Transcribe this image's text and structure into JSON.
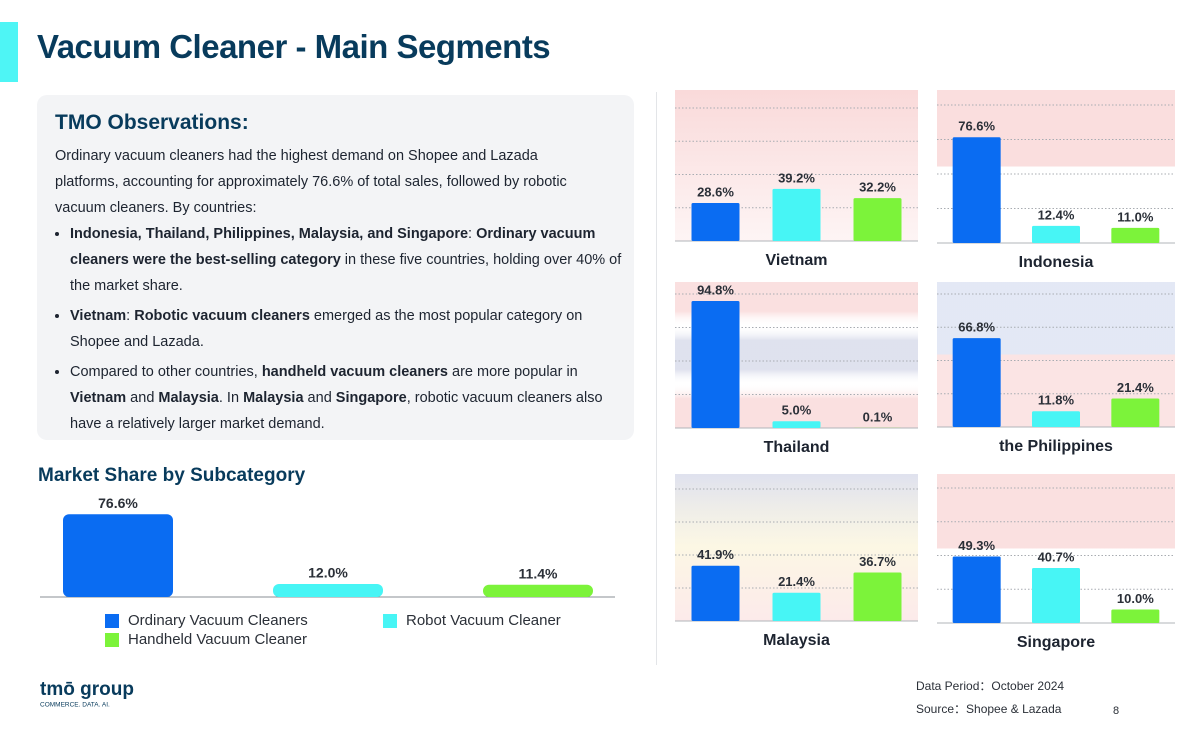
{
  "title": "Vacuum Cleaner - Main Segments",
  "observations": {
    "heading": "TMO Observations:",
    "intro": "Ordinary vacuum cleaners had the highest demand on Shopee and Lazada platforms, accounting for approximately 76.6% of total sales, followed by robotic vacuum cleaners. By countries:",
    "bullets": [
      [
        {
          "text": "Indonesia, Thailand, Philippines, Malaysia, and Singapore",
          "bold": true
        },
        {
          "text": ": ",
          "bold": false
        },
        {
          "text": "Ordinary vacuum cleaners were the best-selling category",
          "bold": true
        },
        {
          "text": " in these five countries, holding over 40% of the market share.",
          "bold": false
        }
      ],
      [
        {
          "text": "Vietnam",
          "bold": true
        },
        {
          "text": ": ",
          "bold": false
        },
        {
          "text": "Robotic vacuum cleaners",
          "bold": true
        },
        {
          "text": " emerged as the most popular category on Shopee and Lazada.",
          "bold": false
        }
      ],
      [
        {
          "text": "Compared to other countries, ",
          "bold": false
        },
        {
          "text": "handheld vacuum cleaners",
          "bold": true
        },
        {
          "text": " are more popular in ",
          "bold": false
        },
        {
          "text": "Vietnam",
          "bold": true
        },
        {
          "text": " and ",
          "bold": false
        },
        {
          "text": "Malaysia",
          "bold": true
        },
        {
          "text": ". In ",
          "bold": false
        },
        {
          "text": "Malaysia",
          "bold": true
        },
        {
          "text": " and ",
          "bold": false
        },
        {
          "text": "Singapore",
          "bold": true
        },
        {
          "text": ", robotic vacuum cleaners also have a relatively larger market demand.",
          "bold": false
        }
      ]
    ]
  },
  "chart_data": [
    {
      "type": "bar",
      "title": "Market Share by Subcategory",
      "categories": [
        "Ordinary Vacuum Cleaners",
        "Robot Vacuum Cleaner",
        "Handheld Vacuum Cleaner"
      ],
      "values": [
        76.6,
        12.0,
        11.4
      ],
      "value_labels": [
        "76.6%",
        "12.0%",
        "11.4%"
      ],
      "colors": [
        "#0a6cf2",
        "#47f5f5",
        "#7cf33a"
      ],
      "ylim": [
        0,
        100
      ]
    },
    {
      "type": "bar",
      "title": "Vietnam",
      "values": [
        28.6,
        39.2,
        32.2
      ],
      "value_labels": [
        "28.6%",
        "39.2%",
        "32.2%"
      ],
      "colors": [
        "#0a6cf2",
        "#47f5f5",
        "#7cf33a"
      ],
      "ylim": [
        0,
        100
      ],
      "yticks": [
        0,
        25,
        50,
        75,
        100
      ],
      "grid": true
    },
    {
      "type": "bar",
      "title": "Indonesia",
      "values": [
        76.6,
        12.4,
        11.0
      ],
      "value_labels": [
        "76.6%",
        "12.4%",
        "11.0%"
      ],
      "colors": [
        "#0a6cf2",
        "#47f5f5",
        "#7cf33a"
      ],
      "ylim": [
        0,
        100
      ],
      "yticks": [
        0,
        25,
        50,
        75,
        100
      ],
      "grid": true
    },
    {
      "type": "bar",
      "title": "Thailand",
      "values": [
        94.8,
        5.0,
        0.1
      ],
      "value_labels": [
        "94.8%",
        "5.0%",
        "0.1%"
      ],
      "colors": [
        "#0a6cf2",
        "#47f5f5",
        "#7cf33a"
      ],
      "ylim": [
        0,
        100
      ],
      "yticks": [
        0,
        25,
        50,
        75,
        100
      ],
      "grid": true
    },
    {
      "type": "bar",
      "title": "the Philippines",
      "values": [
        66.8,
        11.8,
        21.4
      ],
      "value_labels": [
        "66.8%",
        "11.8%",
        "21.4%"
      ],
      "colors": [
        "#0a6cf2",
        "#47f5f5",
        "#7cf33a"
      ],
      "ylim": [
        0,
        100
      ],
      "yticks": [
        0,
        25,
        50,
        75,
        100
      ],
      "grid": true
    },
    {
      "type": "bar",
      "title": "Malaysia",
      "values": [
        41.9,
        21.4,
        36.7
      ],
      "value_labels": [
        "41.9%",
        "21.4%",
        "36.7%"
      ],
      "colors": [
        "#0a6cf2",
        "#47f5f5",
        "#7cf33a"
      ],
      "ylim": [
        0,
        100
      ],
      "yticks": [
        0,
        25,
        50,
        75,
        100
      ],
      "grid": true
    },
    {
      "type": "bar",
      "title": "Singapore",
      "values": [
        49.3,
        40.7,
        10.0
      ],
      "value_labels": [
        "49.3%",
        "40.7%",
        "10.0%"
      ],
      "colors": [
        "#0a6cf2",
        "#47f5f5",
        "#7cf33a"
      ],
      "ylim": [
        0,
        100
      ],
      "yticks": [
        0,
        25,
        50,
        75,
        100
      ],
      "grid": true
    }
  ],
  "footer": {
    "logo": "tmō group",
    "tagline": "COMMERCE. DATA. AI.",
    "period": "Data Period：October 2024",
    "source": "Source：Shopee & Lazada",
    "page": "8"
  }
}
